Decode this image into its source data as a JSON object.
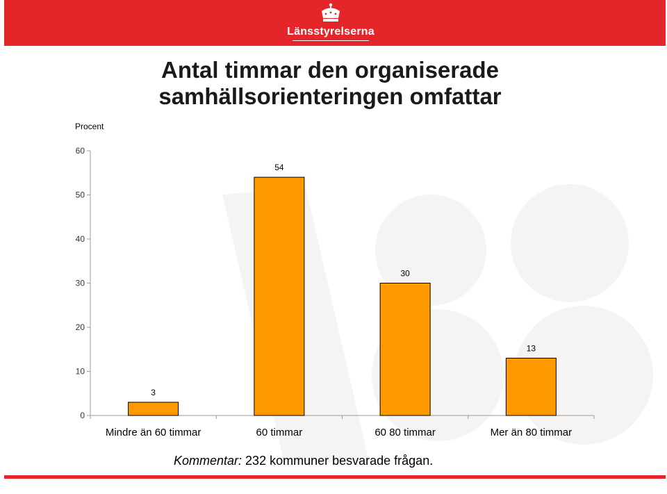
{
  "header": {
    "logo_text": "Länsstyrelserna",
    "logo_icon": "royal-crown-icon",
    "color": "#e4262b"
  },
  "comment": {
    "label": "Kommentar:",
    "text": " 232 kommuner besvarade frågan."
  },
  "chart_data": {
    "type": "bar",
    "title": "Antal timmar den organiserade samhällsorienteringen omfattar",
    "ylabel": "Procent",
    "xlabel": "",
    "ylim": [
      0,
      60
    ],
    "yticks": [
      "0",
      "10",
      "20",
      "30",
      "40",
      "50",
      "60"
    ],
    "categories": [
      "Mindre än 60 timmar",
      "60 timmar",
      "60 80 timmar",
      "Mer än 80 timmar"
    ],
    "values": [
      3,
      54,
      30,
      13
    ],
    "bar_color": "#ff9900",
    "grid": false,
    "legend": "none"
  }
}
